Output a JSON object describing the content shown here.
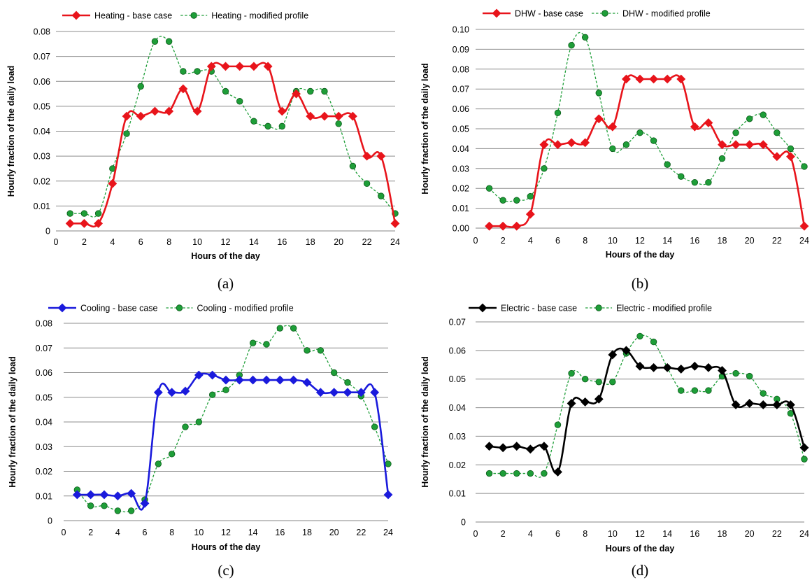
{
  "chart_data": [
    {
      "type": "line",
      "panel_label": "(a)",
      "xlabel": "Hours of the day",
      "ylabel": "Hourly fraction of the daily load",
      "xlim": [
        0,
        24
      ],
      "ylim": [
        0,
        0.08
      ],
      "x_ticks": [
        0,
        2,
        4,
        6,
        8,
        10,
        12,
        14,
        16,
        18,
        20,
        22,
        24
      ],
      "y_ticks": [
        0,
        0.01,
        0.02,
        0.03,
        0.04,
        0.05,
        0.06,
        0.07,
        0.08
      ],
      "y_tick_labels": [
        "0",
        "0.01",
        "0.02",
        "0.03",
        "0.04",
        "0.05",
        "0.06",
        "0.07",
        "0.08"
      ],
      "grid": "horizontal",
      "legend": "top",
      "x": [
        1,
        2,
        3,
        4,
        5,
        6,
        7,
        8,
        9,
        10,
        11,
        12,
        13,
        14,
        15,
        16,
        17,
        18,
        19,
        20,
        21,
        22,
        23,
        24
      ],
      "series": [
        {
          "name": "Heating - base case",
          "color": "#e8141b",
          "style": "solid",
          "marker": "diamond",
          "values": [
            0.003,
            0.003,
            0.003,
            0.019,
            0.046,
            0.046,
            0.048,
            0.048,
            0.057,
            0.048,
            0.066,
            0.066,
            0.066,
            0.066,
            0.066,
            0.048,
            0.055,
            0.046,
            0.046,
            0.046,
            0.046,
            0.03,
            0.03,
            0.003
          ]
        },
        {
          "name": "Heating - modified profile",
          "color": "#1e9e38",
          "style": "dashed",
          "marker": "circle",
          "values": [
            0.007,
            0.007,
            0.007,
            0.025,
            0.039,
            0.058,
            0.076,
            0.076,
            0.064,
            0.064,
            0.064,
            0.056,
            0.052,
            0.044,
            0.042,
            0.042,
            0.056,
            0.056,
            0.056,
            0.043,
            0.026,
            0.019,
            0.014,
            0.007
          ]
        }
      ]
    },
    {
      "type": "line",
      "panel_label": "(b)",
      "xlabel": "Hours of the day",
      "ylabel": "Hourly fraction of the daily load",
      "xlim": [
        0,
        24
      ],
      "ylim": [
        0,
        0.1
      ],
      "x_ticks": [
        0,
        2,
        4,
        6,
        8,
        10,
        12,
        14,
        16,
        18,
        20,
        22,
        24
      ],
      "y_ticks": [
        0,
        0.01,
        0.02,
        0.03,
        0.04,
        0.05,
        0.06,
        0.07,
        0.08,
        0.09,
        0.1
      ],
      "y_tick_labels": [
        "0.00",
        "0.01",
        "0.02",
        "0.03",
        "0.04",
        "0.05",
        "0.06",
        "0.07",
        "0.08",
        "0.09",
        "0.10"
      ],
      "grid": "horizontal",
      "legend": "top",
      "x": [
        1,
        2,
        3,
        4,
        5,
        6,
        7,
        8,
        9,
        10,
        11,
        12,
        13,
        14,
        15,
        16,
        17,
        18,
        19,
        20,
        21,
        22,
        23,
        24
      ],
      "series": [
        {
          "name": "DHW - base case",
          "color": "#e8141b",
          "style": "solid",
          "marker": "diamond",
          "values": [
            0.001,
            0.001,
            0.001,
            0.007,
            0.042,
            0.042,
            0.043,
            0.043,
            0.055,
            0.051,
            0.075,
            0.075,
            0.075,
            0.075,
            0.075,
            0.051,
            0.053,
            0.042,
            0.042,
            0.042,
            0.042,
            0.036,
            0.036,
            0.001
          ]
        },
        {
          "name": "DHW - modified profile",
          "color": "#1e9e38",
          "style": "dashed",
          "marker": "circle",
          "values": [
            0.02,
            0.014,
            0.014,
            0.016,
            0.03,
            0.058,
            0.092,
            0.096,
            0.068,
            0.04,
            0.042,
            0.048,
            0.044,
            0.032,
            0.026,
            0.023,
            0.023,
            0.035,
            0.048,
            0.055,
            0.057,
            0.048,
            0.04,
            0.031
          ]
        }
      ]
    },
    {
      "type": "line",
      "panel_label": "(c)",
      "xlabel": "Hours of the day",
      "ylabel": "Hourly fraction of the daily load",
      "xlim": [
        0,
        24
      ],
      "ylim": [
        0,
        0.08
      ],
      "x_ticks": [
        0,
        2,
        4,
        6,
        8,
        10,
        12,
        14,
        16,
        18,
        20,
        22,
        24
      ],
      "y_ticks": [
        0,
        0.01,
        0.02,
        0.03,
        0.04,
        0.05,
        0.06,
        0.07,
        0.08
      ],
      "y_tick_labels": [
        "0",
        "0.01",
        "0.02",
        "0.03",
        "0.04",
        "0.05",
        "0.06",
        "0.07",
        "0.08"
      ],
      "grid": "horizontal",
      "legend": "top",
      "x": [
        1,
        2,
        3,
        4,
        5,
        6,
        7,
        8,
        9,
        10,
        11,
        12,
        13,
        14,
        15,
        16,
        17,
        18,
        19,
        20,
        21,
        22,
        23,
        24
      ],
      "series": [
        {
          "name": "Cooling - base case",
          "color": "#1a1adc",
          "style": "solid",
          "marker": "diamond",
          "values": [
            0.0105,
            0.0105,
            0.0105,
            0.01,
            0.011,
            0.007,
            0.052,
            0.052,
            0.0525,
            0.059,
            0.059,
            0.057,
            0.057,
            0.057,
            0.057,
            0.057,
            0.057,
            0.056,
            0.052,
            0.052,
            0.052,
            0.052,
            0.052,
            0.0105
          ]
        },
        {
          "name": "Cooling - modified profile",
          "color": "#1e9e38",
          "style": "dashed",
          "marker": "circle",
          "values": [
            0.0125,
            0.006,
            0.006,
            0.004,
            0.004,
            0.0085,
            0.023,
            0.027,
            0.038,
            0.04,
            0.051,
            0.053,
            0.059,
            0.072,
            0.0715,
            0.078,
            0.078,
            0.069,
            0.069,
            0.06,
            0.056,
            0.0505,
            0.038,
            0.023
          ]
        }
      ]
    },
    {
      "type": "line",
      "panel_label": "(d)",
      "xlabel": "Hours of the day",
      "ylabel": "Hourly fraction of the daily load",
      "xlim": [
        0,
        24
      ],
      "ylim": [
        0,
        0.07
      ],
      "x_ticks": [
        0,
        2,
        4,
        6,
        8,
        10,
        12,
        14,
        16,
        18,
        20,
        22,
        24
      ],
      "y_ticks": [
        0,
        0.01,
        0.02,
        0.03,
        0.04,
        0.05,
        0.06,
        0.07
      ],
      "y_tick_labels": [
        "0",
        "0.01",
        "0.02",
        "0.03",
        "0.04",
        "0.05",
        "0.06",
        "0.07"
      ],
      "grid": "horizontal",
      "legend": "top",
      "x": [
        1,
        2,
        3,
        4,
        5,
        6,
        7,
        8,
        9,
        10,
        11,
        12,
        13,
        14,
        15,
        16,
        17,
        18,
        19,
        20,
        21,
        22,
        23,
        24
      ],
      "series": [
        {
          "name": "Electric - base case",
          "color": "#000000",
          "style": "solid",
          "marker": "diamond",
          "values": [
            0.0265,
            0.026,
            0.0265,
            0.0255,
            0.0265,
            0.0175,
            0.0415,
            0.042,
            0.043,
            0.0585,
            0.06,
            0.0545,
            0.054,
            0.054,
            0.0535,
            0.0545,
            0.054,
            0.053,
            0.041,
            0.0415,
            0.041,
            0.041,
            0.041,
            0.026
          ]
        },
        {
          "name": "Electric - modified profile",
          "color": "#1e9e38",
          "style": "dashed",
          "marker": "circle",
          "values": [
            0.017,
            0.017,
            0.017,
            0.017,
            0.017,
            0.034,
            0.052,
            0.05,
            0.049,
            0.049,
            0.059,
            0.065,
            0.063,
            0.054,
            0.046,
            0.046,
            0.046,
            0.051,
            0.052,
            0.051,
            0.045,
            0.043,
            0.038,
            0.022
          ]
        }
      ]
    }
  ]
}
